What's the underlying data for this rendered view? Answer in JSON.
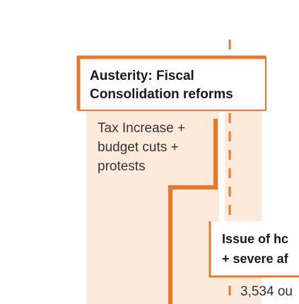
{
  "title_box": {
    "lines": [
      "Austerity: Fiscal",
      "Consolidation reforms"
    ]
  },
  "description": {
    "lines": [
      "Tax Increase +",
      "budget cuts +",
      "protests"
    ]
  },
  "issue_box": {
    "lines": [
      "Issue of hc",
      "+ severe af"
    ]
  },
  "footer_text": "3,534 ou"
}
